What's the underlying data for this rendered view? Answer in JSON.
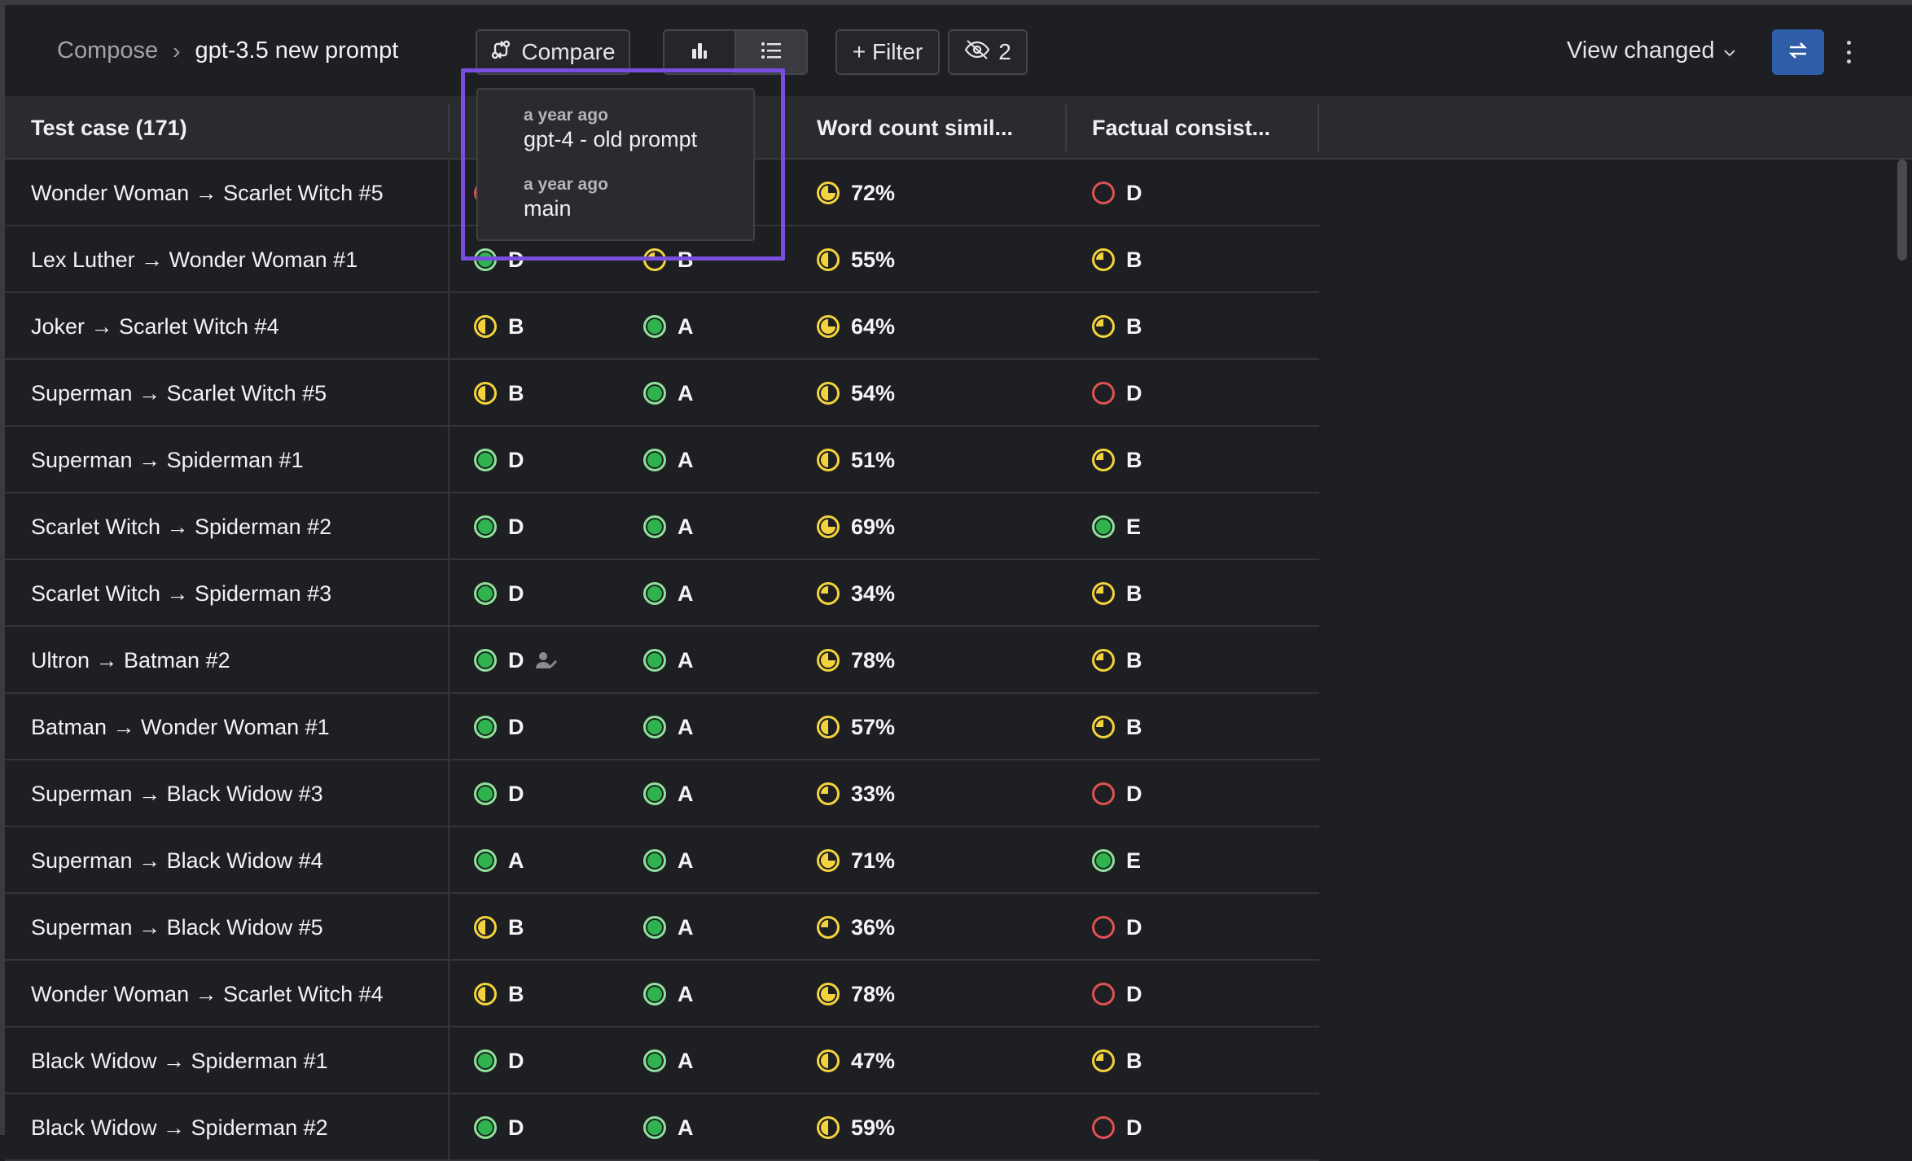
{
  "breadcrumb": {
    "root": "Compose",
    "separator": "›",
    "current": "gpt-3.5 new prompt"
  },
  "toolbar": {
    "compare_label": "Compare",
    "filter_label": "+ Filter",
    "hidden_count": "2",
    "view_changed_label": "View changed"
  },
  "popover": {
    "items": [
      {
        "time": "a year ago",
        "label": "gpt-4 - old prompt"
      },
      {
        "time": "a year ago",
        "label": "main"
      }
    ]
  },
  "table": {
    "headers": {
      "test_case": "Test case (171)",
      "word_count": "Word count simil...",
      "factual": "Factual consist..."
    },
    "rows": [
      {
        "name": "Wonder Woman → Scarlet Witch #5",
        "c1": {
          "v": "",
          "s": "empty"
        },
        "c2": {
          "v": "",
          "s": "green"
        },
        "wc": {
          "v": "72%",
          "s": "q3"
        },
        "fc": {
          "v": "D",
          "s": "empty"
        }
      },
      {
        "name": "Lex Luther → Wonder Woman #1",
        "c1": {
          "v": "D",
          "s": "green"
        },
        "c2": {
          "v": "B",
          "s": "q1"
        },
        "wc": {
          "v": "55%",
          "s": "half"
        },
        "fc": {
          "v": "B",
          "s": "q1"
        }
      },
      {
        "name": "Joker → Scarlet Witch #4",
        "c1": {
          "v": "B",
          "s": "half"
        },
        "c2": {
          "v": "A",
          "s": "green"
        },
        "wc": {
          "v": "64%",
          "s": "q3"
        },
        "fc": {
          "v": "B",
          "s": "q1"
        }
      },
      {
        "name": "Superman → Scarlet Witch #5",
        "c1": {
          "v": "B",
          "s": "half"
        },
        "c2": {
          "v": "A",
          "s": "green"
        },
        "wc": {
          "v": "54%",
          "s": "half"
        },
        "fc": {
          "v": "D",
          "s": "empty"
        }
      },
      {
        "name": "Superman → Spiderman #1",
        "c1": {
          "v": "D",
          "s": "green"
        },
        "c2": {
          "v": "A",
          "s": "green"
        },
        "wc": {
          "v": "51%",
          "s": "half"
        },
        "fc": {
          "v": "B",
          "s": "q1"
        }
      },
      {
        "name": "Scarlet Witch → Spiderman #2",
        "c1": {
          "v": "D",
          "s": "green"
        },
        "c2": {
          "v": "A",
          "s": "green"
        },
        "wc": {
          "v": "69%",
          "s": "q3"
        },
        "fc": {
          "v": "E",
          "s": "green"
        }
      },
      {
        "name": "Scarlet Witch → Spiderman #3",
        "c1": {
          "v": "D",
          "s": "green"
        },
        "c2": {
          "v": "A",
          "s": "green"
        },
        "wc": {
          "v": "34%",
          "s": "q1"
        },
        "fc": {
          "v": "B",
          "s": "q1"
        }
      },
      {
        "name": "Ultron → Batman #2",
        "c1": {
          "v": "D",
          "s": "green",
          "person": true
        },
        "c2": {
          "v": "A",
          "s": "green"
        },
        "wc": {
          "v": "78%",
          "s": "q3"
        },
        "fc": {
          "v": "B",
          "s": "q1"
        }
      },
      {
        "name": "Batman → Wonder Woman #1",
        "c1": {
          "v": "D",
          "s": "green"
        },
        "c2": {
          "v": "A",
          "s": "green"
        },
        "wc": {
          "v": "57%",
          "s": "half"
        },
        "fc": {
          "v": "B",
          "s": "q1"
        }
      },
      {
        "name": "Superman → Black Widow #3",
        "c1": {
          "v": "D",
          "s": "green"
        },
        "c2": {
          "v": "A",
          "s": "green"
        },
        "wc": {
          "v": "33%",
          "s": "q1"
        },
        "fc": {
          "v": "D",
          "s": "empty"
        }
      },
      {
        "name": "Superman → Black Widow #4",
        "c1": {
          "v": "A",
          "s": "green"
        },
        "c2": {
          "v": "A",
          "s": "green"
        },
        "wc": {
          "v": "71%",
          "s": "q3"
        },
        "fc": {
          "v": "E",
          "s": "green"
        }
      },
      {
        "name": "Superman → Black Widow #5",
        "c1": {
          "v": "B",
          "s": "half"
        },
        "c2": {
          "v": "A",
          "s": "green"
        },
        "wc": {
          "v": "36%",
          "s": "q1"
        },
        "fc": {
          "v": "D",
          "s": "empty"
        }
      },
      {
        "name": "Wonder Woman → Scarlet Witch #4",
        "c1": {
          "v": "B",
          "s": "half"
        },
        "c2": {
          "v": "A",
          "s": "green"
        },
        "wc": {
          "v": "78%",
          "s": "q3"
        },
        "fc": {
          "v": "D",
          "s": "empty"
        }
      },
      {
        "name": "Black Widow → Spiderman #1",
        "c1": {
          "v": "D",
          "s": "green"
        },
        "c2": {
          "v": "A",
          "s": "green"
        },
        "wc": {
          "v": "47%",
          "s": "half"
        },
        "fc": {
          "v": "B",
          "s": "q1"
        }
      },
      {
        "name": "Black Widow → Spiderman #2",
        "c1": {
          "v": "D",
          "s": "green"
        },
        "c2": {
          "v": "A",
          "s": "green"
        },
        "wc": {
          "v": "59%",
          "s": "half"
        },
        "fc": {
          "v": "D",
          "s": "empty"
        }
      }
    ]
  }
}
